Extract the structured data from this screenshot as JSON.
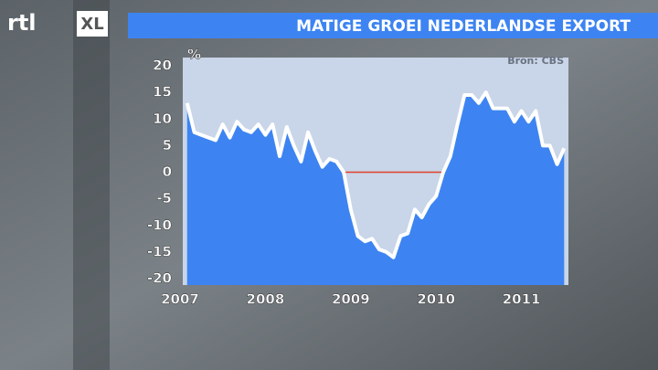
{
  "logo": [
    "rtl",
    "XL"
  ],
  "chart_data": {
    "type": "area",
    "title": "MATIGE GROEI NEDERLANDSE EXPORT",
    "source": "Bron: CBS",
    "y_label": "%",
    "x": [
      2007.083,
      2007.167,
      2007.25,
      2007.333,
      2007.417,
      2007.5,
      2007.583,
      2007.667,
      2007.75,
      2007.833,
      2007.917,
      2008,
      2008.083,
      2008.167,
      2008.25,
      2008.333,
      2008.417,
      2008.5,
      2008.583,
      2008.667,
      2008.75,
      2008.833,
      2008.917,
      2009,
      2009.083,
      2009.167,
      2009.25,
      2009.333,
      2009.417,
      2009.5,
      2009.583,
      2009.667,
      2009.75,
      2009.833,
      2009.917,
      2010,
      2010.083,
      2010.167,
      2010.25,
      2010.333,
      2010.417,
      2010.5,
      2010.583,
      2010.667,
      2010.75,
      2010.833,
      2010.917,
      2011,
      2011.083,
      2011.167,
      2011.25,
      2011.333,
      2011.417,
      2011.5
    ],
    "series": [
      {
        "name": "Export",
        "color": "#3d84f2",
        "line_color": "#ffffff",
        "values": [
          13,
          7.5,
          7,
          6.5,
          6,
          9,
          6.5,
          9.5,
          8,
          7.5,
          9,
          7,
          9,
          3,
          8.5,
          5,
          2,
          7.5,
          4,
          1,
          2.5,
          2,
          0,
          -7,
          -12,
          -13,
          -12.5,
          -14.5,
          -15,
          -16,
          -12,
          -11.5,
          -7,
          -8.5,
          -6,
          -4.5,
          0,
          3,
          9,
          14.5,
          14.5,
          13,
          15,
          12,
          12,
          12,
          9.5,
          11.5,
          9.5,
          11.5,
          5,
          5,
          1.5,
          4.5
        ]
      }
    ],
    "reference_line": {
      "value": 0,
      "color": "#e0402a"
    },
    "xlim": [
      2007,
      2011.55
    ],
    "xticks": [
      2007,
      2008,
      2009,
      2010,
      2011
    ],
    "ylim": [
      -20,
      20
    ],
    "yticks": [
      -20,
      -15,
      -10,
      -5,
      0,
      5,
      10,
      15,
      20
    ],
    "plot_background": "#c9d5e8"
  }
}
